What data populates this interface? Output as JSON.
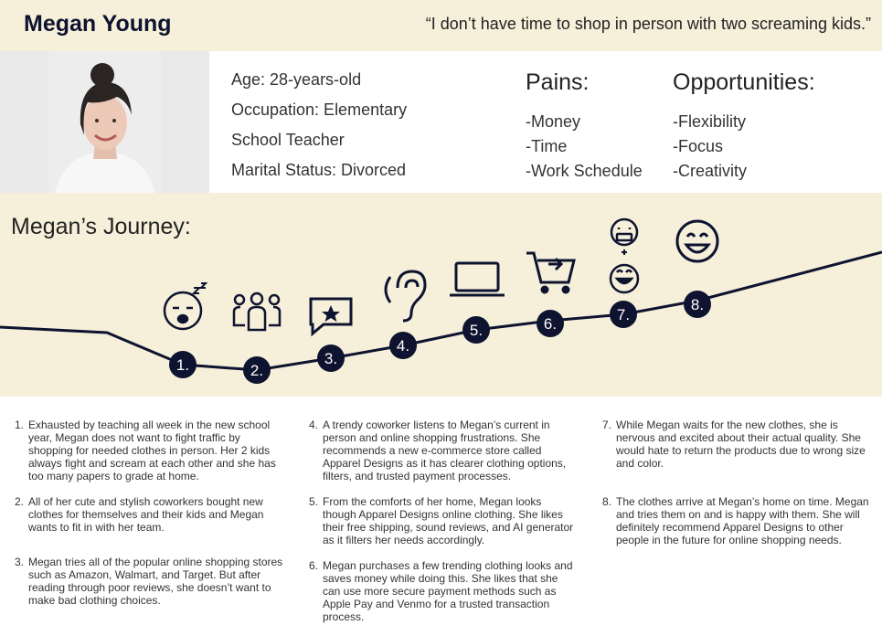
{
  "header": {
    "name": "Megan Young",
    "quote": "“I don’t have time to shop in person with two screaming kids.”"
  },
  "profile": {
    "age": "Age: 28-years-old",
    "occupation_line1": "Occupation: Elementary",
    "occupation_line2": "School Teacher",
    "marital": "Marital Status: Divorced"
  },
  "pains": {
    "title": "Pains:",
    "items": [
      "-Money",
      "-Time",
      "-Work Schedule"
    ]
  },
  "opportunities": {
    "title": "Opportunities:",
    "items": [
      "-Flexibility",
      "-Focus",
      "-Creativity"
    ]
  },
  "journey": {
    "title": "Megan’s Journey:",
    "line_color": "#0e1330",
    "steps": [
      {
        "label": "1.",
        "icon": "sleepy-face-icon"
      },
      {
        "label": "2.",
        "icon": "group-people-icon"
      },
      {
        "label": "3.",
        "icon": "star-review-icon"
      },
      {
        "label": "4.",
        "icon": "ear-listen-icon"
      },
      {
        "label": "5.",
        "icon": "laptop-icon"
      },
      {
        "label": "6.",
        "icon": "add-to-cart-icon"
      },
      {
        "label": "7.",
        "icon": "grimace-plus-smile-icon"
      },
      {
        "label": "8.",
        "icon": "happy-face-icon"
      }
    ]
  },
  "notes": [
    {
      "num": "1.",
      "text": "Exhausted by teaching all week in the new school year, Megan does not want to fight traffic by shopping for needed clothes in person. Her 2 kids always fight and scream at each other and she has too many papers to grade at home."
    },
    {
      "num": "2.",
      "text": "All of her cute and stylish coworkers bought new clothes for themselves and their kids and Megan wants to fit in with her team."
    },
    {
      "num": "3.",
      "text": "Megan tries all of the popular online shopping stores such as Amazon, Walmart, and Target. But after reading through poor reviews, she doesn’t want to make bad clothing choices."
    },
    {
      "num": "4.",
      "text": "A trendy coworker listens to Megan’s current in person and online shopping frustrations. She recommends a new e-commerce store called Apparel Designs as it has clearer clothing options, filters, and trusted payment processes."
    },
    {
      "num": "5.",
      "text": "From the comforts of her home, Megan looks though Apparel Designs online clothing. She likes their free shipping, sound reviews, and AI generator as it filters her needs accordingly."
    },
    {
      "num": "6.",
      "text": "Megan purchases a few trending clothing looks and saves money while doing this. She likes that she can use more secure payment methods such as Apple Pay and Venmo for a trusted transaction process."
    },
    {
      "num": "7.",
      "text": "While Megan waits for the new clothes, she is nervous and excited about their actual quality. She would hate to return the products due to wrong size and color."
    },
    {
      "num": "8.",
      "text": "The clothes arrive at Megan’s home on time. Megan and tries them on and is happy with them. She will definitely recommend Apparel Designs to other people in the future for online shopping needs."
    }
  ]
}
